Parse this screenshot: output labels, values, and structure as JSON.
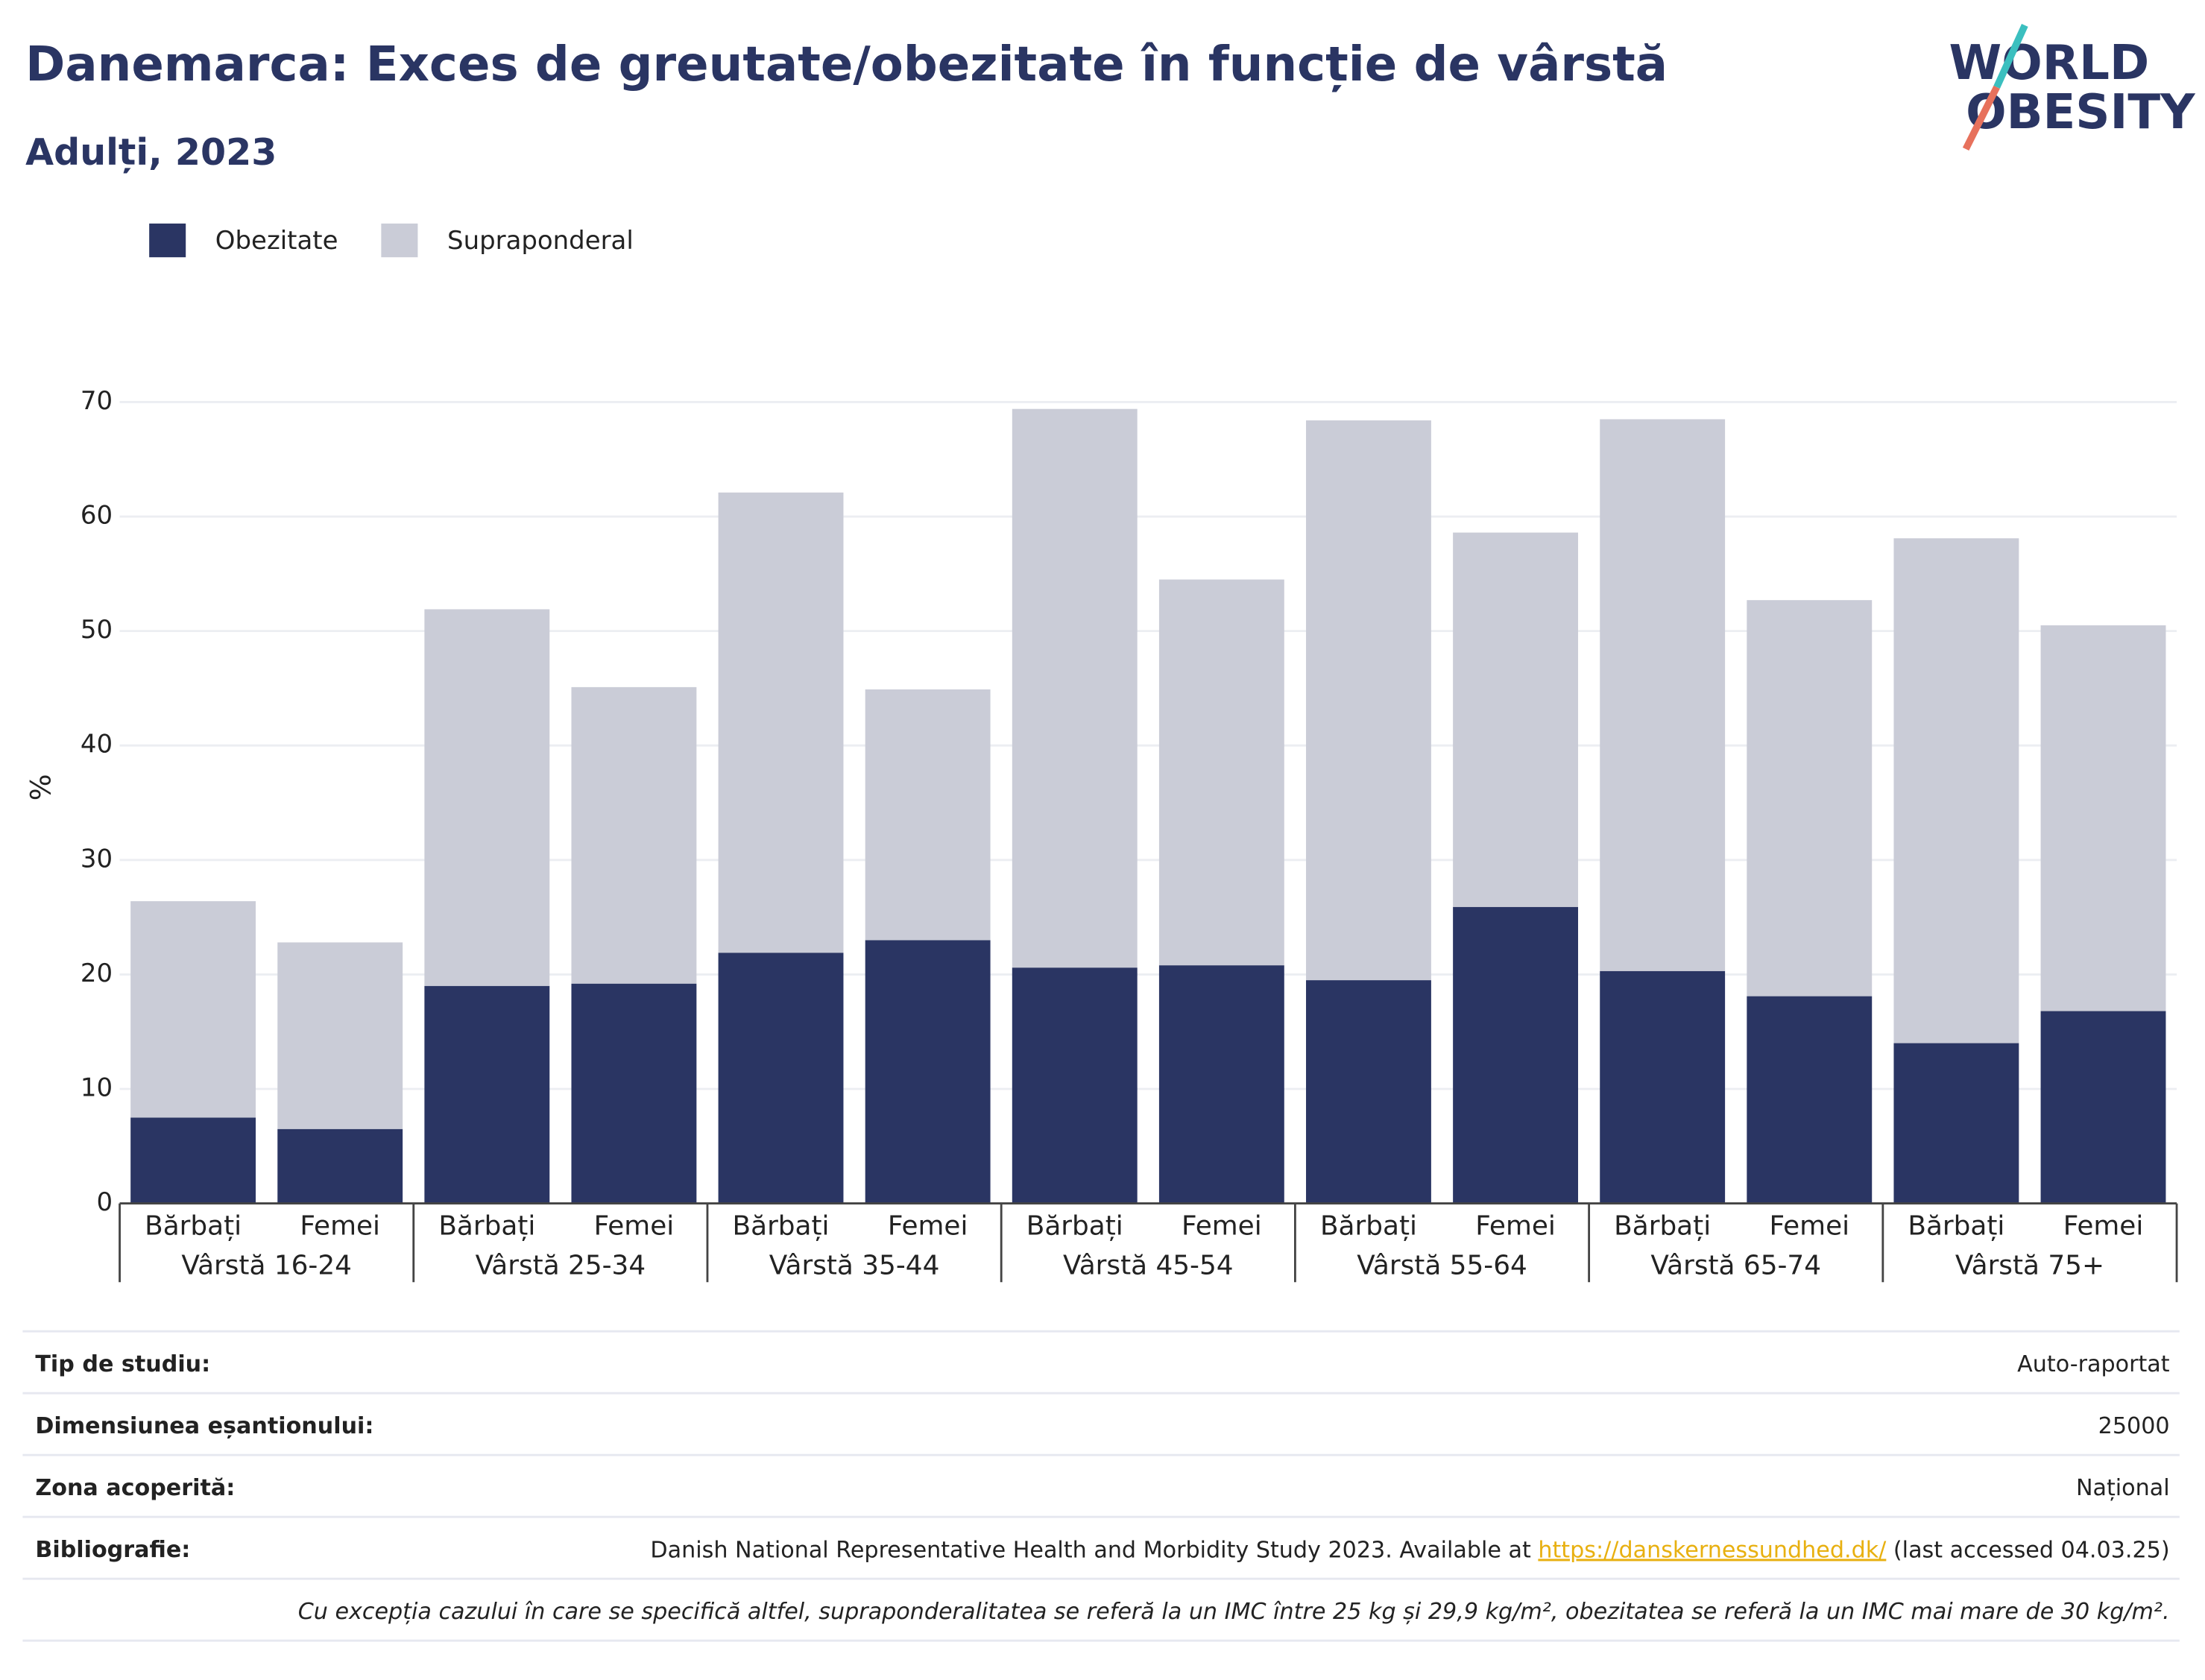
{
  "chart_data": {
    "type": "bar",
    "stacked": true,
    "title": "Danemarca: Exces de greutate/obezitate în funcție de vârstă",
    "subtitle": "Adulți, 2023",
    "y_label": "%",
    "categories": [
      "Bărbați",
      "Femei",
      "Bărbați",
      "Femei",
      "Bărbați",
      "Femei",
      "Bărbați",
      "Femei",
      "Bărbați",
      "Femei",
      "Bărbați",
      "Femei",
      "Bărbați",
      "Femei"
    ],
    "groups": [
      "Vârstă 16-24",
      "Vârstă 25-34",
      "Vârstă 35-44",
      "Vârstă 45-54",
      "Vârstă 55-64",
      "Vârstă 65-74",
      "Vârstă 75+"
    ],
    "series": [
      {
        "name": "Obezitate",
        "color": "#2a3563",
        "values": [
          7.5,
          6.5,
          19.0,
          19.2,
          21.9,
          23.0,
          20.6,
          20.8,
          19.5,
          25.9,
          20.3,
          18.1,
          14.0,
          16.8
        ]
      },
      {
        "name": "Supraponderal",
        "color": "#caccd7",
        "values": [
          18.9,
          16.3,
          32.9,
          25.9,
          40.2,
          21.9,
          48.8,
          33.7,
          48.9,
          32.7,
          48.2,
          34.6,
          44.1,
          33.7
        ]
      }
    ],
    "ylim": [
      0,
      70
    ],
    "yticks": [
      0,
      10,
      20,
      30,
      40,
      50,
      60,
      70
    ],
    "grid": true,
    "legend": "top-left"
  },
  "logo": {
    "line1": "WORLD",
    "line2": "OBESITY"
  },
  "table": {
    "rows": [
      [
        "Tip de studiu:",
        "Auto-raportat"
      ],
      [
        "Dimensiunea eșantionului:",
        "25000"
      ],
      [
        "Zona acoperită:",
        "Național"
      ]
    ],
    "bibliography": {
      "label": "Bibliografie:",
      "before": "Danish National Representative Health and Morbidity Study 2023. Available at ",
      "link": "https://danskernessundhed.dk/",
      "after": " (last accessed 04.03.25)"
    },
    "note": "Cu excepția cazului în care se specifică altfel, supraponderalitatea se referă la un IMC între 25 kg și 29,9 kg/m², obezitatea se referă la un IMC mai mare de 30 kg/m²."
  }
}
